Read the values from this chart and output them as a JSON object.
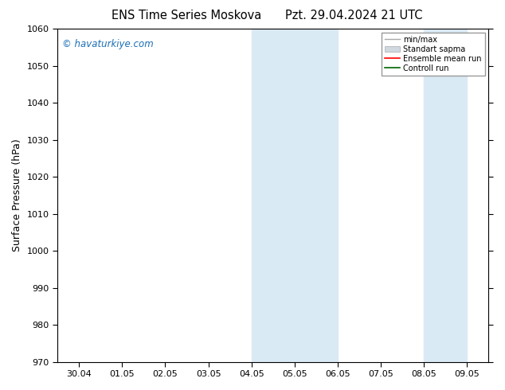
{
  "title": "ENS Time Series Moskova",
  "title2": "Pzt. 29.04.2024 21 UTC",
  "ylabel": "Surface Pressure (hPa)",
  "ylim": [
    970,
    1060
  ],
  "yticks": [
    970,
    980,
    990,
    1000,
    1010,
    1020,
    1030,
    1040,
    1050,
    1060
  ],
  "xlabels": [
    "30.04",
    "01.05",
    "02.05",
    "03.05",
    "04.05",
    "05.05",
    "06.05",
    "07.05",
    "08.05",
    "09.05"
  ],
  "x_positions": [
    0,
    1,
    2,
    3,
    4,
    5,
    6,
    7,
    8,
    9
  ],
  "shade_bands": [
    {
      "xmin": 4,
      "xmax": 5
    },
    {
      "xmin": 5,
      "xmax": 6
    },
    {
      "xmin": 8,
      "xmax": 9
    }
  ],
  "shade_color": "#daeaf5",
  "watermark": "© havaturkiye.com",
  "watermark_color": "#1a6eb5",
  "legend_labels": [
    "min/max",
    "Standart sapma",
    "Ensemble mean run",
    "Controll run"
  ],
  "legend_line_color": "#aaaaaa",
  "legend_patch_color": "#d0d8e0",
  "legend_red": "#ff0000",
  "legend_green": "#006400",
  "background_color": "#ffffff",
  "plot_bg_color": "#ffffff",
  "axis_color": "#000000",
  "title_fontsize": 10.5,
  "tick_fontsize": 8,
  "ylabel_fontsize": 9
}
